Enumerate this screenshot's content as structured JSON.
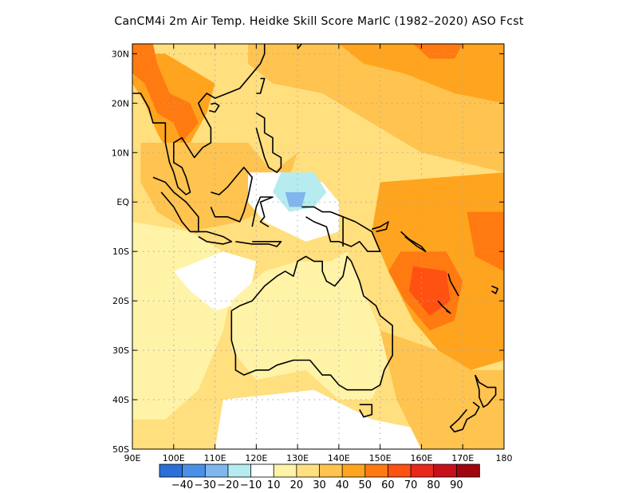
{
  "title": "CanCM4i  2m Air Temp. Heidke Skill Score MarIC (1982–2020) ASO Fcst",
  "map": {
    "lon_range": [
      90,
      180
    ],
    "lat_range": [
      -50,
      32
    ],
    "grid": true,
    "lat_ticks": [
      {
        "lat": 30,
        "label": "30N"
      },
      {
        "lat": 20,
        "label": "20N"
      },
      {
        "lat": 10,
        "label": "10N"
      },
      {
        "lat": 0,
        "label": "EQ"
      },
      {
        "lat": -10,
        "label": "10S"
      },
      {
        "lat": -20,
        "label": "20S"
      },
      {
        "lat": -30,
        "label": "30S"
      },
      {
        "lat": -40,
        "label": "40S"
      },
      {
        "lat": -50,
        "label": "50S"
      }
    ],
    "lon_ticks": [
      {
        "lon": 90,
        "label": "90E"
      },
      {
        "lon": 100,
        "label": "100E"
      },
      {
        "lon": 110,
        "label": "110E"
      },
      {
        "lon": 120,
        "label": "120E"
      },
      {
        "lon": 130,
        "label": "130E"
      },
      {
        "lon": 140,
        "label": "140E"
      },
      {
        "lon": 150,
        "label": "150E"
      },
      {
        "lon": 160,
        "label": "160E"
      },
      {
        "lon": 170,
        "label": "170E"
      },
      {
        "lon": 180,
        "label": "180"
      }
    ]
  },
  "colorbar": {
    "colors": [
      "#2b6fd9",
      "#4a90e6",
      "#7fb6ef",
      "#b6ecf0",
      "#ffffff",
      "#fff3a8",
      "#ffdf7e",
      "#ffc34f",
      "#ffa41e",
      "#ff7a10",
      "#ff5112",
      "#e8281a",
      "#c8101a",
      "#a0060f"
    ],
    "labels": [
      "-40",
      "-30",
      "-20",
      "-10",
      "10",
      "20",
      "30",
      "40",
      "50",
      "60",
      "70",
      "80",
      "90"
    ]
  },
  "regions": [
    {
      "name": "base-field",
      "color": "#ffdf7e"
    },
    {
      "name": "north-pacific-band",
      "color": "#ffc34f"
    },
    {
      "name": "north-pacific-core",
      "color": "#ffa41e"
    },
    {
      "name": "north-pacific-hot",
      "color": "#ff7a10"
    },
    {
      "name": "indochina-field",
      "color": "#ffa41e"
    },
    {
      "name": "indochina-hot",
      "color": "#ff7a10"
    },
    {
      "name": "sea-band",
      "color": "#ffc34f"
    },
    {
      "name": "southwest-pacific-field",
      "color": "#ffa41e"
    },
    {
      "name": "coral-sea-hot",
      "color": "#ff7a10"
    },
    {
      "name": "coral-sea-core",
      "color": "#ff5112"
    },
    {
      "name": "east-pacific-hot",
      "color": "#ff7a10"
    },
    {
      "name": "indian-ocean-light",
      "color": "#fff3a8"
    },
    {
      "name": "indian-ocean-white",
      "color": "#ffffff"
    },
    {
      "name": "australia-interior",
      "color": "#ffffff"
    },
    {
      "name": "australia-yellow",
      "color": "#fff3a8"
    },
    {
      "name": "southern-ocean-white",
      "color": "#ffffff"
    },
    {
      "name": "tasman-field",
      "color": "#ffc34f"
    },
    {
      "name": "maritime-white",
      "color": "#ffffff"
    },
    {
      "name": "maritime-cyan",
      "color": "#b6ecf0"
    },
    {
      "name": "maritime-blue",
      "color": "#7fb6ef"
    }
  ],
  "coast_color": "#000000"
}
